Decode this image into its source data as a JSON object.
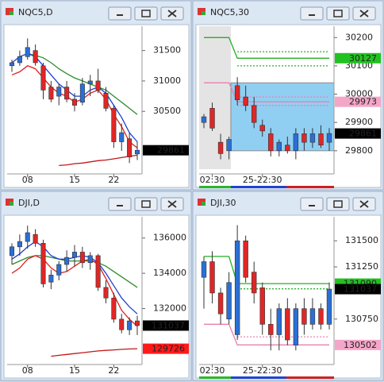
{
  "chart_data": [
    {
      "type": "candlestick",
      "title": "NQC5,D",
      "categories": [
        null,
        null,
        "08",
        null,
        null,
        null,
        null,
        null,
        "15",
        null,
        null,
        null,
        null,
        "22",
        null,
        null,
        null
      ],
      "open": [
        31250,
        31300,
        31400,
        31500,
        31250,
        30900,
        30750,
        30900,
        30700,
        30650,
        30950,
        31000,
        30800,
        30550,
        30000,
        30050,
        29800
      ],
      "high": [
        31350,
        31500,
        31700,
        31600,
        31300,
        31000,
        30950,
        31000,
        30800,
        31050,
        31100,
        31200,
        30900,
        30600,
        30300,
        30150,
        30000
      ],
      "low": [
        31150,
        31250,
        31350,
        31250,
        30700,
        30650,
        30600,
        30650,
        30500,
        30600,
        30750,
        30800,
        30500,
        29900,
        29850,
        29650,
        29700
      ],
      "close": [
        31300,
        31400,
        31550,
        31300,
        30850,
        30700,
        30900,
        30700,
        30600,
        30950,
        31000,
        30850,
        30550,
        30000,
        30150,
        29750,
        29861
      ],
      "series": [
        {
          "color": "#2e8b2e",
          "dashed": false,
          "values": [
            null,
            null,
            31450,
            31420,
            31380,
            31300,
            31200,
            31120,
            31050,
            31000,
            30950,
            30900,
            30850,
            30750,
            30650,
            30550,
            30450
          ]
        },
        {
          "color": "#1f3fd0",
          "dashed": false,
          "values": [
            31300,
            31400,
            31450,
            31400,
            31250,
            31100,
            30950,
            30850,
            30750,
            30750,
            30850,
            30900,
            30800,
            30600,
            30400,
            30150,
            30000
          ]
        },
        {
          "color": "#e02020",
          "dashed": false,
          "values": [
            31100,
            31150,
            31250,
            31200,
            31050,
            30900,
            30800,
            30750,
            30650,
            30700,
            30800,
            30850,
            30700,
            30450,
            30250,
            30000,
            29900
          ]
        },
        {
          "color": "#c01818",
          "dashed": false,
          "values": [
            null,
            null,
            null,
            null,
            null,
            null,
            29610,
            29620,
            29640,
            29650,
            29670,
            29690,
            29700,
            29720,
            29740,
            29760,
            29780
          ]
        }
      ],
      "ylim": [
        29550,
        31900
      ],
      "yticks": [
        30500,
        31000,
        31500
      ],
      "price_tags": [
        {
          "value": 29861,
          "color": "#000000"
        }
      ]
    },
    {
      "type": "candlestick",
      "title": "NQC5,30",
      "categories": [
        null,
        "02:30",
        null,
        null,
        null,
        null,
        null,
        "25-22:30",
        null,
        null,
        null,
        null,
        null,
        null,
        null,
        null
      ],
      "open": [
        29900,
        29950,
        29830,
        29800,
        30030,
        29990,
        29960,
        29890,
        29860,
        29800,
        29820,
        29800,
        29860,
        29830,
        29860,
        29830
      ],
      "high": [
        29930,
        29970,
        29860,
        29850,
        30060,
        30030,
        29990,
        29910,
        29880,
        29840,
        29850,
        29880,
        29880,
        29880,
        29890,
        29880
      ],
      "low": [
        29880,
        29870,
        29770,
        29770,
        29960,
        29940,
        29880,
        29850,
        29780,
        29780,
        29790,
        29770,
        29800,
        29810,
        29810,
        29800
      ],
      "close": [
        29920,
        29880,
        29790,
        29840,
        29980,
        29960,
        29900,
        29870,
        29800,
        29830,
        29800,
        29860,
        29830,
        29860,
        29820,
        29861
      ],
      "series": [
        {
          "color": "#22b022",
          "dashed": false,
          "values": [
            30200,
            30200,
            30200,
            30200,
            30127,
            30127,
            30127,
            30127,
            30127,
            30127,
            30127,
            30127,
            30127,
            30127,
            30127,
            30127
          ]
        },
        {
          "color": "#22b022",
          "dashed": true,
          "values": [
            null,
            null,
            null,
            null,
            30150,
            30150,
            30150,
            30150,
            30150,
            30150,
            30150,
            30150,
            30150,
            30150,
            30150,
            30150
          ]
        },
        {
          "color": "#22b022",
          "dashed": true,
          "values": [
            null,
            null,
            null,
            null,
            30100,
            30100,
            30100,
            30100,
            30100,
            30100,
            30100,
            30100,
            30100,
            30100,
            30100,
            30100
          ]
        },
        {
          "color": "#e880b0",
          "dashed": false,
          "values": [
            30040,
            30040,
            30040,
            30040,
            29973,
            29973,
            29973,
            29973,
            29973,
            29973,
            29973,
            29973,
            29973,
            29973,
            29973,
            29973
          ]
        },
        {
          "color": "#e880b0",
          "dashed": true,
          "values": [
            null,
            null,
            null,
            null,
            29990,
            29990,
            29990,
            29990,
            29990,
            29990,
            29990,
            29990,
            29990,
            29990,
            29990,
            29990
          ]
        },
        {
          "color": "#e880b0",
          "dashed": true,
          "values": [
            null,
            null,
            null,
            null,
            29960,
            29960,
            29960,
            29960,
            29960,
            29960,
            29960,
            29960,
            29960,
            29960,
            29960,
            29960
          ]
        }
      ],
      "ylim": [
        29735,
        30240
      ],
      "yticks": [
        29800,
        29900,
        30000,
        30100,
        30200
      ],
      "price_tags": [
        {
          "value": 30127,
          "color": "#22c122"
        },
        {
          "value": 29973,
          "color": "#f4a6c8"
        },
        {
          "value": 29861,
          "color": "#000000"
        }
      ]
    },
    {
      "type": "candlestick",
      "title": "DJI,D",
      "categories": [
        null,
        null,
        "08",
        null,
        null,
        null,
        null,
        null,
        "15",
        null,
        null,
        null,
        null,
        "22",
        null,
        null,
        null
      ],
      "open": [
        135000,
        135500,
        135800,
        136200,
        135700,
        133500,
        133900,
        134500,
        134900,
        135200,
        134600,
        135000,
        133200,
        132600,
        131400,
        130800,
        131300
      ],
      "high": [
        135700,
        136200,
        136700,
        136500,
        135900,
        134200,
        134700,
        135300,
        135600,
        135500,
        135200,
        135100,
        133600,
        132900,
        131700,
        131500,
        131600
      ],
      "low": [
        134500,
        135000,
        135400,
        135500,
        133200,
        133100,
        133600,
        134100,
        134400,
        134300,
        134200,
        133000,
        132300,
        131200,
        130600,
        130500,
        130500
      ],
      "close": [
        135500,
        135800,
        136300,
        135700,
        133400,
        133900,
        134500,
        134900,
        135200,
        134600,
        135000,
        133200,
        132600,
        131400,
        130800,
        131300,
        131037
      ],
      "series": [
        {
          "color": "#2e8b2e",
          "dashed": false,
          "values": [
            134500,
            134700,
            134900,
            135000,
            135000,
            134900,
            134800,
            134700,
            134700,
            134700,
            134700,
            134600,
            134400,
            134100,
            133800,
            133500,
            133200
          ]
        },
        {
          "color": "#1f3fd0",
          "dashed": false,
          "values": [
            134800,
            135100,
            135500,
            135800,
            135500,
            135000,
            134800,
            134800,
            134900,
            135000,
            134900,
            134600,
            134000,
            133300,
            132600,
            132100,
            131700
          ]
        },
        {
          "color": "#e02020",
          "dashed": false,
          "values": [
            134000,
            134300,
            134800,
            135000,
            134800,
            134300,
            134000,
            134100,
            134400,
            134700,
            134800,
            134500,
            133700,
            132800,
            131900,
            131400,
            131000
          ]
        },
        {
          "color": "#c01818",
          "dashed": false,
          "values": [
            null,
            null,
            null,
            null,
            null,
            129300,
            129350,
            129400,
            129450,
            129500,
            129550,
            129600,
            129630,
            129660,
            129690,
            129710,
            129726
          ]
        }
      ],
      "ylim": [
        129100,
        137200
      ],
      "yticks": [
        132000,
        134000,
        136000
      ],
      "price_tags": [
        {
          "value": 131037,
          "color": "#000000"
        },
        {
          "value": 129726,
          "color": "#ff1a1a"
        }
      ]
    },
    {
      "type": "candlestick",
      "title": "DJI,30",
      "categories": [
        null,
        "02:30",
        null,
        null,
        null,
        null,
        null,
        "25-22:30",
        null,
        null,
        null,
        null,
        null,
        null,
        null,
        null
      ],
      "open": [
        131150,
        131300,
        131000,
        130750,
        130600,
        131500,
        131200,
        131050,
        130700,
        130600,
        130850,
        130500,
        130850,
        130700,
        130850,
        130700
      ],
      "high": [
        131350,
        131400,
        131050,
        131200,
        131650,
        131550,
        131300,
        131100,
        130850,
        130900,
        130950,
        130900,
        130950,
        130950,
        130900,
        131100
      ],
      "low": [
        130850,
        130900,
        130700,
        130700,
        130550,
        131100,
        130900,
        130600,
        130450,
        130450,
        130500,
        130450,
        130600,
        130650,
        130650,
        130650
      ],
      "close": [
        131300,
        131000,
        130800,
        131100,
        131500,
        131150,
        131000,
        130700,
        130600,
        130850,
        130550,
        130850,
        130700,
        130850,
        130700,
        131037
      ],
      "series": [
        {
          "color": "#22b022",
          "dashed": false,
          "values": [
            131350,
            131350,
            131350,
            131350,
            131090,
            131090,
            131090,
            131090,
            131090,
            131090,
            131090,
            131090,
            131090,
            131090,
            131090,
            131090
          ]
        },
        {
          "color": "#22b022",
          "dashed": true,
          "values": [
            null,
            null,
            null,
            null,
            131040,
            131040,
            131040,
            131040,
            131040,
            131040,
            131040,
            131040,
            131040,
            131040,
            131040,
            131040
          ]
        },
        {
          "color": "#e880b0",
          "dashed": false,
          "values": [
            130700,
            130700,
            130700,
            130700,
            130502,
            130502,
            130502,
            130502,
            130502,
            130502,
            130502,
            130502,
            130502,
            130502,
            130502,
            130502
          ]
        },
        {
          "color": "#e880b0",
          "dashed": true,
          "values": [
            null,
            null,
            null,
            null,
            130580,
            130580,
            130580,
            130580,
            130580,
            130580,
            130580,
            130580,
            130580,
            130580,
            130580,
            130580
          ]
        }
      ],
      "ylim": [
        130360,
        131730
      ],
      "yticks": [
        130750,
        131250,
        131500
      ],
      "price_tags": [
        {
          "value": 131090,
          "color": "#22c122"
        },
        {
          "value": 131037,
          "color": "#000000"
        },
        {
          "value": 130502,
          "color": "#f4a6c8"
        }
      ]
    }
  ]
}
